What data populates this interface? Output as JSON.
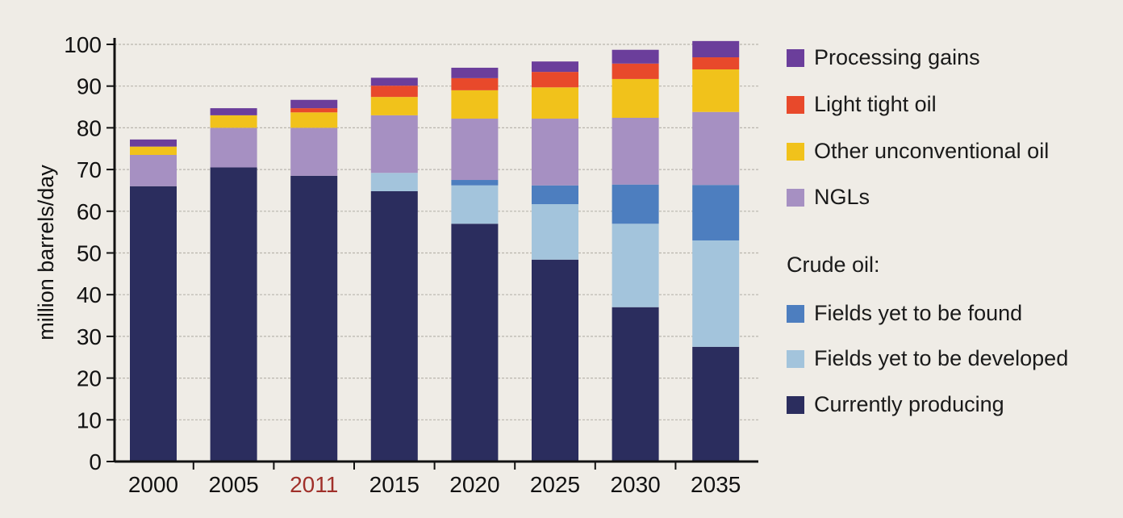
{
  "chart_data": {
    "type": "bar",
    "stacked": true,
    "title": "",
    "xlabel": "",
    "ylabel": "million barrels/day",
    "ylim": [
      0,
      100
    ],
    "yticks": [
      0,
      10,
      20,
      30,
      40,
      50,
      60,
      70,
      80,
      90,
      100
    ],
    "grid": true,
    "legend_position": "right",
    "legend_heading": "Crude oil:",
    "highlight_category": "2011",
    "highlight_color": "#a0302a",
    "categories": [
      "2000",
      "2005",
      "2011",
      "2015",
      "2020",
      "2025",
      "2030",
      "2035"
    ],
    "series": [
      {
        "name": "Currently producing",
        "color": "#2b2d5e",
        "values": [
          66,
          70.5,
          68.5,
          64.8,
          57,
          48.4,
          37,
          27.5
        ]
      },
      {
        "name": "Fields yet to be developed",
        "color": "#a3c4dc",
        "values": [
          0,
          0,
          0,
          4.4,
          9.2,
          13.3,
          20,
          25.5
        ]
      },
      {
        "name": "Fields yet to be found",
        "color": "#4d7ebf",
        "values": [
          0,
          0,
          0,
          0,
          1.3,
          4.5,
          9.4,
          13.3
        ]
      },
      {
        "name": "NGLs",
        "color": "#a690c2",
        "values": [
          7.5,
          9.5,
          11.5,
          13.8,
          14.7,
          16,
          16,
          17.5
        ]
      },
      {
        "name": "Other unconventional oil",
        "color": "#f1c21b",
        "values": [
          2,
          3,
          3.7,
          4.4,
          6.8,
          7.5,
          9.3,
          10.2
        ]
      },
      {
        "name": "Light tight oil",
        "color": "#e8492b",
        "values": [
          0,
          0,
          1,
          2.7,
          2.9,
          3.7,
          3.7,
          2.9
        ]
      },
      {
        "name": "Processing gains",
        "color": "#6b3e9b",
        "values": [
          1.7,
          1.7,
          2,
          1.9,
          2.5,
          2.5,
          3.3,
          3.9
        ]
      }
    ]
  }
}
